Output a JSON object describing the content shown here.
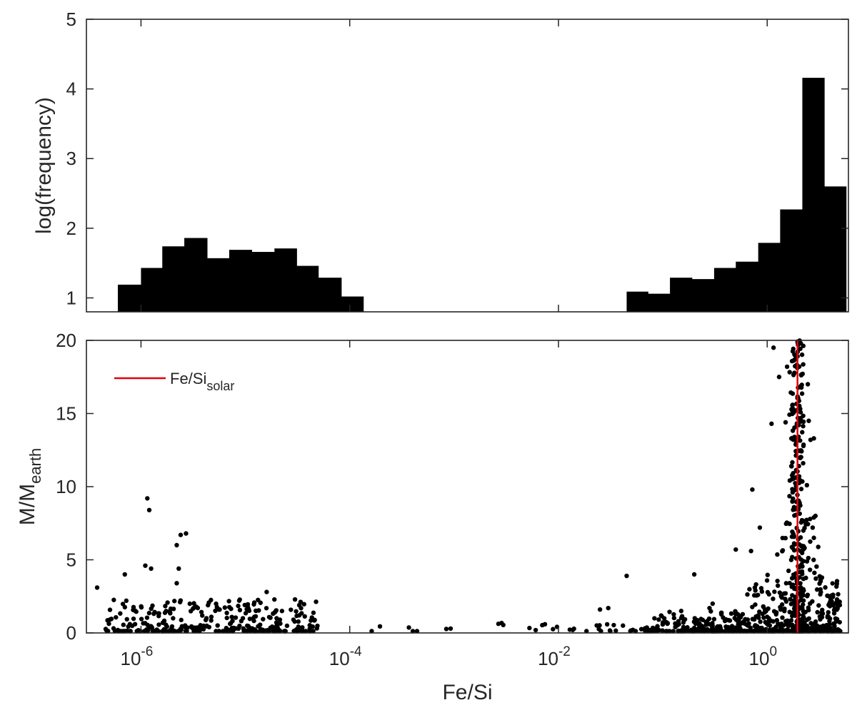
{
  "chart_data": [
    {
      "id": "top",
      "type": "bar",
      "xlabel": "",
      "ylabel": "log(frequency)",
      "xscale": "log",
      "xlim": [
        3e-07,
        6
      ],
      "ylim": [
        0.8,
        5
      ],
      "yticks": [
        1,
        2,
        3,
        4,
        5
      ],
      "xtick_labels_shown": false,
      "bar_color": "#000000",
      "bins_left": [
        {
          "x0": 6e-07,
          "x1": 1e-06,
          "value": 1.19
        },
        {
          "x0": 1e-06,
          "x1": 1.6e-06,
          "value": 1.43
        },
        {
          "x0": 1.6e-06,
          "x1": 2.6e-06,
          "value": 1.74
        },
        {
          "x0": 2.6e-06,
          "x1": 4.3e-06,
          "value": 1.86
        },
        {
          "x0": 4.3e-06,
          "x1": 7e-06,
          "value": 1.57
        },
        {
          "x0": 7e-06,
          "x1": 1.15e-05,
          "value": 1.69
        },
        {
          "x0": 1.15e-05,
          "x1": 1.9e-05,
          "value": 1.66
        },
        {
          "x0": 1.9e-05,
          "x1": 3.1e-05,
          "value": 1.71
        },
        {
          "x0": 3.1e-05,
          "x1": 5e-05,
          "value": 1.46
        },
        {
          "x0": 5e-05,
          "x1": 8.3e-05,
          "value": 1.29
        },
        {
          "x0": 8.3e-05,
          "x1": 0.000135,
          "value": 1.02
        }
      ],
      "bins_right": [
        {
          "x0": 0.045,
          "x1": 0.072,
          "value": 1.09
        },
        {
          "x0": 0.072,
          "x1": 0.117,
          "value": 1.06
        },
        {
          "x0": 0.117,
          "x1": 0.19,
          "value": 1.29
        },
        {
          "x0": 0.19,
          "x1": 0.31,
          "value": 1.27
        },
        {
          "x0": 0.31,
          "x1": 0.5,
          "value": 1.43
        },
        {
          "x0": 0.5,
          "x1": 0.82,
          "value": 1.52
        },
        {
          "x0": 0.82,
          "x1": 1.33,
          "value": 1.79
        },
        {
          "x0": 1.33,
          "x1": 2.17,
          "value": 2.27
        },
        {
          "x0": 2.17,
          "x1": 3.52,
          "value": 4.16
        },
        {
          "x0": 3.52,
          "x1": 5.7,
          "value": 2.6
        }
      ]
    },
    {
      "id": "bottom",
      "type": "scatter",
      "xlabel": "Fe/Si",
      "ylabel_main": "M/M",
      "ylabel_sub": "earth",
      "xscale": "log",
      "xlim": [
        3e-07,
        6
      ],
      "ylim": [
        0,
        20
      ],
      "yticks": [
        0,
        5,
        10,
        15,
        20
      ],
      "xticks": [
        {
          "value": 1e-06,
          "base": "10",
          "exp": "-6"
        },
        {
          "value": 0.0001,
          "base": "10",
          "exp": "-4"
        },
        {
          "value": 0.01,
          "base": "10",
          "exp": "-2"
        },
        {
          "value": 1,
          "base": "10",
          "exp": "0"
        }
      ],
      "point_color": "#000000",
      "reference_line": {
        "x": 1.95,
        "color": "#e3000f",
        "legend_main": "Fe/Si",
        "legend_sub": "solar"
      },
      "legend_location": "top-left",
      "highlight_points": [
        {
          "x": 1.15e-06,
          "y": 9.2
        },
        {
          "x": 1.2e-06,
          "y": 8.4
        },
        {
          "x": 2.4e-06,
          "y": 6.7
        },
        {
          "x": 2.7e-06,
          "y": 6.8
        },
        {
          "x": 2.2e-06,
          "y": 6.0
        },
        {
          "x": 1.1e-06,
          "y": 4.6
        },
        {
          "x": 1.25e-06,
          "y": 4.4
        },
        {
          "x": 7e-07,
          "y": 4.0
        },
        {
          "x": 2.3e-06,
          "y": 4.4
        },
        {
          "x": 3.8e-07,
          "y": 3.1
        },
        {
          "x": 2.2e-06,
          "y": 3.4
        },
        {
          "x": 1.6e-05,
          "y": 2.8
        },
        {
          "x": 0.045,
          "y": 3.9
        },
        {
          "x": 0.2,
          "y": 4.0
        },
        {
          "x": 0.5,
          "y": 5.7
        },
        {
          "x": 0.7,
          "y": 5.6
        },
        {
          "x": 0.85,
          "y": 7.2
        },
        {
          "x": 1.15,
          "y": 19.5
        },
        {
          "x": 1.3,
          "y": 17.5
        },
        {
          "x": 1.55,
          "y": 18.2
        },
        {
          "x": 2.45,
          "y": 17.0
        },
        {
          "x": 1.1,
          "y": 14.3
        },
        {
          "x": 1.5,
          "y": 14.4
        },
        {
          "x": 2.5,
          "y": 14.5
        },
        {
          "x": 2.6,
          "y": 13.2
        },
        {
          "x": 2.8,
          "y": 13.3
        },
        {
          "x": 0.72,
          "y": 9.8
        },
        {
          "x": 2.4,
          "y": 10.1
        },
        {
          "x": 2.9,
          "y": 8.0
        },
        {
          "x": 2.8,
          "y": 6.5
        },
        {
          "x": 0.3,
          "y": 2.0
        },
        {
          "x": 0.28,
          "y": 1.7
        },
        {
          "x": 0.15,
          "y": 1.5
        },
        {
          "x": 0.03,
          "y": 1.7
        },
        {
          "x": 0.025,
          "y": 1.6
        }
      ]
    }
  ]
}
